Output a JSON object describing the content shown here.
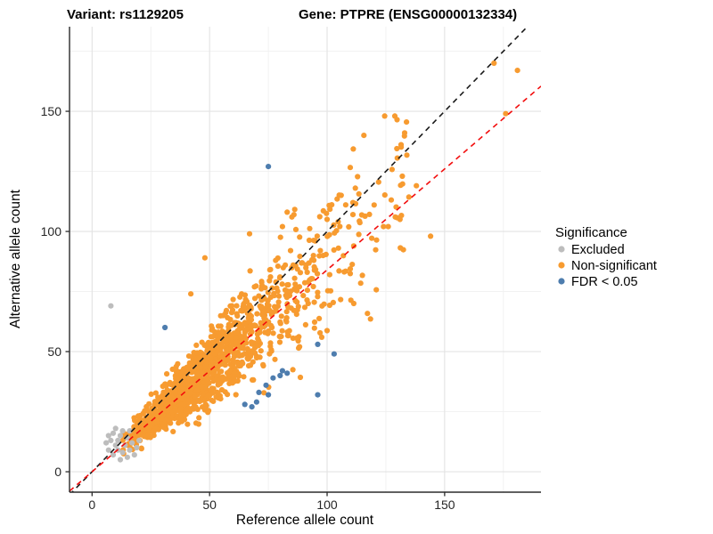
{
  "titles": {
    "variant": "Variant: rs1129205",
    "gene": "Gene: PTPRE (ENSG00000132334)"
  },
  "chart_data": {
    "type": "scatter",
    "xlabel": "Reference allele count",
    "ylabel": "Alternative allele count",
    "x_ticks": [
      0,
      50,
      100,
      150
    ],
    "y_ticks": [
      0,
      50,
      100,
      150
    ],
    "x_minor_ticks": [
      25,
      75,
      125,
      175
    ],
    "y_minor_ticks": [
      25,
      75,
      125,
      175
    ],
    "x_domain": [
      -9.6,
      191.0
    ],
    "y_domain": [
      -8.5,
      185.2
    ],
    "grid": "on",
    "legend_position": "right",
    "legend": {
      "title": "Significance",
      "items": [
        {
          "label": "Excluded",
          "color": "#BDBDBD"
        },
        {
          "label": "Non-significant",
          "color": "#F79B30"
        },
        {
          "label": "FDR < 0.05",
          "color": "#4E7DAE"
        }
      ]
    },
    "reference_lines": [
      {
        "name": "identity-line",
        "slope": 1.0,
        "intercept": 0,
        "color": "#1A1A1A"
      },
      {
        "name": "expected-ratio-line",
        "slope": 0.84,
        "intercept": 0,
        "color": "#F20D0D"
      }
    ],
    "series": [
      {
        "name": "Excluded",
        "color": "#BDBDBD",
        "points": [
          [
            8,
            69
          ],
          [
            6,
            12
          ],
          [
            7,
            9
          ],
          [
            7,
            15
          ],
          [
            8,
            13
          ],
          [
            9,
            7
          ],
          [
            9,
            16
          ],
          [
            10,
            11
          ],
          [
            10,
            18
          ],
          [
            11,
            9
          ],
          [
            11,
            13
          ],
          [
            12,
            5
          ],
          [
            12,
            15
          ],
          [
            13,
            8
          ],
          [
            13,
            17
          ],
          [
            14,
            11
          ],
          [
            15,
            6
          ],
          [
            15,
            14
          ],
          [
            16,
            9
          ],
          [
            17,
            12
          ],
          [
            18,
            7
          ],
          [
            19,
            10
          ],
          [
            16,
            17
          ],
          [
            20,
            13
          ]
        ]
      },
      {
        "name": "FDR < 0.05",
        "color": "#4E7DAE",
        "points": [
          [
            31,
            60
          ],
          [
            75,
            127
          ],
          [
            65,
            28
          ],
          [
            68,
            27
          ],
          [
            70,
            29
          ],
          [
            71,
            33
          ],
          [
            74,
            36
          ],
          [
            75,
            32
          ],
          [
            77,
            39
          ],
          [
            80,
            40
          ],
          [
            81,
            42
          ],
          [
            83,
            41
          ],
          [
            96,
            32
          ],
          [
            96,
            53
          ],
          [
            103,
            49
          ]
        ]
      },
      {
        "name": "Non-significant (outliers)",
        "color": "#F79B30",
        "points": [
          [
            171,
            170
          ],
          [
            181,
            167
          ],
          [
            176,
            149
          ],
          [
            133,
            141
          ],
          [
            138,
            119
          ],
          [
            144,
            98
          ],
          [
            129,
            106
          ],
          [
            131,
            105
          ],
          [
            126,
            102
          ],
          [
            124,
            102
          ],
          [
            120,
            111
          ],
          [
            112,
            118
          ],
          [
            111,
            112
          ],
          [
            111,
            107
          ],
          [
            106,
            115
          ],
          [
            100,
            105
          ],
          [
            83,
            108
          ],
          [
            85,
            106
          ],
          [
            81,
            102
          ],
          [
            67,
            99
          ],
          [
            48,
            89
          ],
          [
            42,
            74
          ]
        ]
      }
    ],
    "cloud": {
      "name": "Non-significant (dense cloud)",
      "color": "#F79B30",
      "count": 1400,
      "seed": 20240607,
      "log_mean": 3.85,
      "log_sd": 0.45,
      "ratio_mean": 0.86,
      "ratio_sd": 0.15,
      "x_range": [
        7,
        135
      ],
      "y_range": [
        2.5,
        148
      ]
    }
  },
  "colors": {
    "background": "#FFFFFF",
    "grid_major": "#E3E3E3",
    "grid_minor": "#F0F0F0",
    "axis_line": "#2B2B2B",
    "tick_text": "#262626"
  }
}
